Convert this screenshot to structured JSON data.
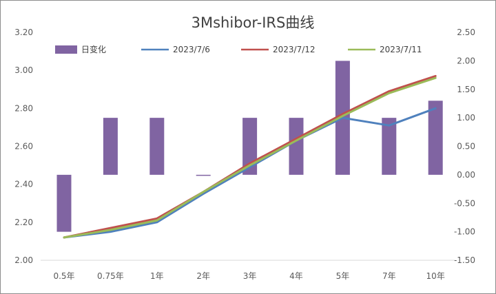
{
  "chart_data": {
    "type": "bar+line",
    "title": "3Mshibor-IRS曲线",
    "categories": [
      "0.5年",
      "0.75年",
      "1年",
      "2年",
      "3年",
      "4年",
      "5年",
      "7年",
      "10年"
    ],
    "bar_series": {
      "name": "日变化",
      "color": "#8064a2",
      "axis": "right",
      "values": [
        -1.0,
        1.0,
        1.0,
        0.0,
        1.0,
        1.0,
        2.0,
        1.0,
        1.3
      ]
    },
    "line_series": [
      {
        "name": "2023/7/6",
        "color": "#4f81bd",
        "values": [
          2.12,
          2.15,
          2.2,
          2.35,
          2.49,
          2.63,
          2.75,
          2.71,
          2.8
        ]
      },
      {
        "name": "2023/7/12",
        "color": "#c0504d",
        "values": [
          2.12,
          2.17,
          2.22,
          2.36,
          2.51,
          2.64,
          2.77,
          2.89,
          2.97
        ]
      },
      {
        "name": "2023/7/11",
        "color": "#9bbb59",
        "values": [
          2.12,
          2.16,
          2.21,
          2.36,
          2.5,
          2.63,
          2.76,
          2.88,
          2.96
        ]
      }
    ],
    "y_left": {
      "min": 2.0,
      "max": 3.2,
      "ticks": [
        "2.00",
        "2.20",
        "2.40",
        "2.60",
        "2.80",
        "3.00",
        "3.20"
      ]
    },
    "y_right": {
      "min": -1.5,
      "max": 2.5,
      "ticks": [
        "-1.50",
        "-1.00",
        "-0.50",
        "0.00",
        "0.50",
        "1.00",
        "1.50",
        "2.00",
        "2.50"
      ]
    },
    "grid": false,
    "legend_position": "top"
  }
}
